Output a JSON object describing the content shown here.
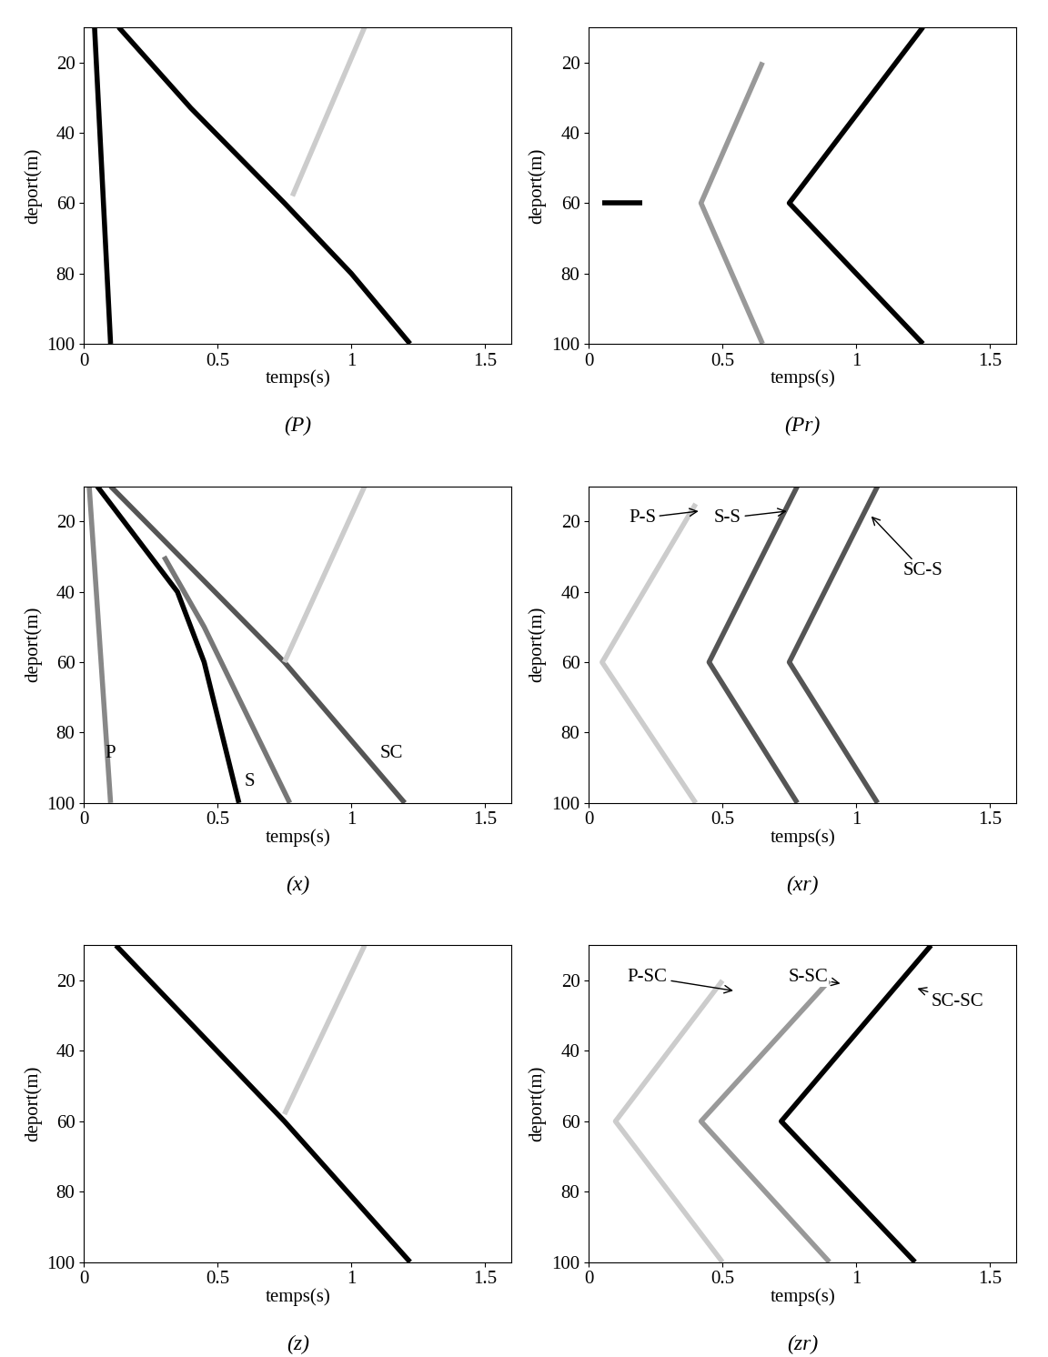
{
  "chart_data": [
    {
      "type": "line",
      "title": "(P)",
      "x_label": "temps(s)",
      "y_label": "deport(m)",
      "xlim": [
        0,
        1.6
      ],
      "xticks": [
        0,
        0.5,
        1,
        1.5
      ],
      "ylim": [
        100,
        10
      ],
      "yticks": [
        20,
        40,
        60,
        80,
        100
      ],
      "series": [
        {
          "color": "#000000",
          "x": [
            0.04,
            0.1
          ],
          "values": [
            10,
            100
          ]
        },
        {
          "color": "#000000",
          "x": [
            0.13,
            0.4,
            0.75,
            1.0,
            1.22
          ],
          "values": [
            10,
            33,
            60,
            80,
            100
          ]
        },
        {
          "color": "#cccccc",
          "x": [
            0.78,
            1.05
          ],
          "values": [
            58,
            10
          ]
        }
      ]
    },
    {
      "type": "line",
      "title": "(Pr)",
      "x_label": "temps(s)",
      "y_label": "deport(m)",
      "xlim": [
        0,
        1.6
      ],
      "xticks": [
        0,
        0.5,
        1,
        1.5
      ],
      "ylim": [
        100,
        10
      ],
      "yticks": [
        20,
        40,
        60,
        80,
        100
      ],
      "series": [
        {
          "color": "#000000",
          "x": [
            0.05,
            0.2
          ],
          "values": [
            60,
            60
          ]
        },
        {
          "color": "#999999",
          "x": [
            0.65,
            0.42,
            0.65
          ],
          "values": [
            20,
            60,
            100
          ]
        },
        {
          "color": "#000000",
          "x": [
            1.25,
            0.75,
            1.25
          ],
          "values": [
            10,
            60,
            100
          ]
        }
      ]
    },
    {
      "type": "line",
      "title": "(x)",
      "x_label": "temps(s)",
      "y_label": "deport(m)",
      "xlim": [
        0,
        1.6
      ],
      "xticks": [
        0,
        0.5,
        1,
        1.5
      ],
      "ylim": [
        100,
        10
      ],
      "yticks": [
        20,
        40,
        60,
        80,
        100
      ],
      "series": [
        {
          "color": "#888888",
          "x": [
            0.02,
            0.1
          ],
          "values": [
            10,
            100
          ]
        },
        {
          "color": "#000000",
          "x": [
            0.05,
            0.2,
            0.35,
            0.45,
            0.58
          ],
          "values": [
            10,
            25,
            40,
            60,
            100
          ]
        },
        {
          "color": "#777777",
          "x": [
            0.3,
            0.45,
            0.77
          ],
          "values": [
            30,
            50,
            100
          ]
        },
        {
          "color": "#555555",
          "x": [
            0.1,
            0.75,
            1.2
          ],
          "values": [
            10,
            60,
            100
          ]
        },
        {
          "color": "#cccccc",
          "x": [
            0.75,
            1.05
          ],
          "values": [
            60,
            10
          ]
        }
      ],
      "annotations": [
        {
          "text": "P",
          "x": 0.1,
          "y": 86
        },
        {
          "text": "S",
          "x": 0.62,
          "y": 94
        },
        {
          "text": "SC",
          "x": 1.15,
          "y": 86
        }
      ]
    },
    {
      "type": "line",
      "title": "(xr)",
      "x_label": "temps(s)",
      "y_label": "deport(m)",
      "xlim": [
        0,
        1.6
      ],
      "xticks": [
        0,
        0.5,
        1,
        1.5
      ],
      "ylim": [
        100,
        10
      ],
      "yticks": [
        20,
        40,
        60,
        80,
        100
      ],
      "series": [
        {
          "color": "#cccccc",
          "x": [
            0.4,
            0.05,
            0.4
          ],
          "values": [
            15,
            60,
            100
          ]
        },
        {
          "color": "#555555",
          "x": [
            0.78,
            0.45,
            0.78
          ],
          "values": [
            10,
            60,
            100
          ]
        },
        {
          "color": "#555555",
          "x": [
            1.08,
            0.75,
            1.08
          ],
          "values": [
            10,
            60,
            100
          ]
        }
      ],
      "annotations": [
        {
          "text": "P-S",
          "x": 0.2,
          "y": 19,
          "xy": [
            0.42,
            17
          ]
        },
        {
          "text": "S-S",
          "x": 0.52,
          "y": 19,
          "xy": [
            0.75,
            17
          ]
        },
        {
          "text": "SC-S",
          "x": 1.25,
          "y": 34,
          "xy": [
            1.05,
            18
          ]
        }
      ]
    },
    {
      "type": "line",
      "title": "(z)",
      "x_label": "temps(s)",
      "y_label": "deport(m)",
      "xlim": [
        0,
        1.6
      ],
      "xticks": [
        0,
        0.5,
        1,
        1.5
      ],
      "ylim": [
        100,
        10
      ],
      "yticks": [
        20,
        40,
        60,
        80,
        100
      ],
      "series": [
        {
          "color": "#000000",
          "x": [
            0.12,
            0.75,
            1.22
          ],
          "values": [
            10,
            60,
            100
          ]
        },
        {
          "color": "#cccccc",
          "x": [
            0.75,
            1.05
          ],
          "values": [
            58,
            10
          ]
        }
      ]
    },
    {
      "type": "line",
      "title": "(zr)",
      "x_label": "temps(s)",
      "y_label": "deport(m)",
      "xlim": [
        0,
        1.6
      ],
      "xticks": [
        0,
        0.5,
        1,
        1.5
      ],
      "ylim": [
        100,
        10
      ],
      "yticks": [
        20,
        40,
        60,
        80,
        100
      ],
      "series": [
        {
          "color": "#cccccc",
          "x": [
            0.5,
            0.1,
            0.5
          ],
          "values": [
            20,
            60,
            100
          ]
        },
        {
          "color": "#999999",
          "x": [
            0.9,
            0.42,
            0.9
          ],
          "values": [
            20,
            60,
            100
          ]
        },
        {
          "color": "#000000",
          "x": [
            1.28,
            0.72,
            1.22
          ],
          "values": [
            10,
            60,
            100
          ]
        }
      ],
      "annotations": [
        {
          "text": "P-SC",
          "x": 0.22,
          "y": 19,
          "xy": [
            0.55,
            23
          ]
        },
        {
          "text": "S-SC",
          "x": 0.82,
          "y": 19,
          "xy": [
            0.95,
            21
          ]
        },
        {
          "text": "SC-SC",
          "x": 1.38,
          "y": 26,
          "xy": [
            1.22,
            22
          ]
        }
      ]
    }
  ]
}
